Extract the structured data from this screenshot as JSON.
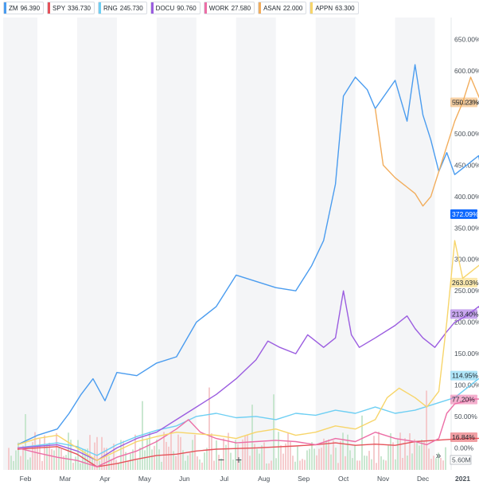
{
  "legend": [
    {
      "symbol": "ZM",
      "price": "96.390",
      "color": "#4a9cef"
    },
    {
      "symbol": "SPY",
      "price": "336.730",
      "color": "#e5525a"
    },
    {
      "symbol": "RNG",
      "price": "245.730",
      "color": "#6ecff3"
    },
    {
      "symbol": "DOCU",
      "price": "90.760",
      "color": "#9b5de0"
    },
    {
      "symbol": "WORK",
      "price": "27.580",
      "color": "#ec6ea6"
    },
    {
      "symbol": "ASAN",
      "price": "22.000",
      "color": "#f2ad5c"
    },
    {
      "symbol": "APPN",
      "price": "63.300",
      "color": "#f7d56a"
    }
  ],
  "volume_label": "5.60M",
  "controls": {
    "zoom_out": "−",
    "zoom_in": "+",
    "expand": "»"
  },
  "chart_data": {
    "type": "line",
    "y_unit": "percent change",
    "ylim": [
      -35,
      685
    ],
    "y_ticks": [
      "650.00%",
      "600.00%",
      "550.00%",
      "500.00%",
      "450.00%",
      "400.00%",
      "350.00%",
      "300.00%",
      "250.00%",
      "200.00%",
      "150.00%",
      "100.00%",
      "50.00%",
      "0.00%"
    ],
    "x_ticks": [
      "Feb",
      "Mar",
      "Apr",
      "May",
      "Jun",
      "Jul",
      "Aug",
      "Sep",
      "Oct",
      "Nov",
      "Dec",
      "2021"
    ],
    "grid": "alternating shaded month bands",
    "series": [
      {
        "name": "ZM",
        "color": "#4a9cef",
        "end_label": "372.09%",
        "points": [
          [
            0,
            5
          ],
          [
            0.5,
            20
          ],
          [
            1,
            30
          ],
          [
            1.3,
            55
          ],
          [
            1.6,
            85
          ],
          [
            1.9,
            110
          ],
          [
            2.2,
            75
          ],
          [
            2.5,
            120
          ],
          [
            3,
            115
          ],
          [
            3.5,
            135
          ],
          [
            4,
            145
          ],
          [
            4.5,
            200
          ],
          [
            5,
            225
          ],
          [
            5.5,
            275
          ],
          [
            6,
            265
          ],
          [
            6.5,
            255
          ],
          [
            7,
            250
          ],
          [
            7.4,
            290
          ],
          [
            7.7,
            330
          ],
          [
            8,
            420
          ],
          [
            8.2,
            560
          ],
          [
            8.5,
            590
          ],
          [
            8.8,
            570
          ],
          [
            9,
            540
          ],
          [
            9.5,
            585
          ],
          [
            9.8,
            520
          ],
          [
            10,
            610
          ],
          [
            10.2,
            530
          ],
          [
            10.4,
            490
          ],
          [
            10.6,
            440
          ],
          [
            10.8,
            470
          ],
          [
            11,
            435
          ],
          [
            11.3,
            450
          ],
          [
            11.6,
            465
          ],
          [
            11.8,
            400
          ],
          [
            12,
            380
          ],
          [
            12.2,
            372
          ]
        ]
      },
      {
        "name": "SPY",
        "color": "#e5525a",
        "end_label": "16.84%",
        "points": [
          [
            0,
            -2
          ],
          [
            1,
            2
          ],
          [
            1.5,
            -10
          ],
          [
            2,
            -30
          ],
          [
            2.5,
            -25
          ],
          [
            3,
            -18
          ],
          [
            3.5,
            -12
          ],
          [
            4,
            -10
          ],
          [
            4.5,
            -5
          ],
          [
            5,
            -2
          ],
          [
            6,
            0
          ],
          [
            7,
            3
          ],
          [
            7.5,
            5
          ],
          [
            8,
            8
          ],
          [
            8.5,
            4
          ],
          [
            9,
            6
          ],
          [
            9.5,
            4
          ],
          [
            10,
            10
          ],
          [
            10.5,
            12
          ],
          [
            11,
            14
          ],
          [
            11.5,
            15
          ],
          [
            12,
            16
          ],
          [
            12.2,
            17
          ]
        ]
      },
      {
        "name": "RNG",
        "color": "#6ecff3",
        "end_label": "114.95%",
        "points": [
          [
            0,
            0
          ],
          [
            1,
            8
          ],
          [
            1.5,
            2
          ],
          [
            2,
            -12
          ],
          [
            2.5,
            5
          ],
          [
            3,
            18
          ],
          [
            3.5,
            28
          ],
          [
            4,
            35
          ],
          [
            4.5,
            50
          ],
          [
            5,
            55
          ],
          [
            5.5,
            48
          ],
          [
            6,
            50
          ],
          [
            6.5,
            45
          ],
          [
            7,
            55
          ],
          [
            7.5,
            52
          ],
          [
            8,
            60
          ],
          [
            8.5,
            55
          ],
          [
            9,
            65
          ],
          [
            9.5,
            55
          ],
          [
            10,
            60
          ],
          [
            10.5,
            70
          ],
          [
            11,
            80
          ],
          [
            11.5,
            105
          ],
          [
            11.8,
            120
          ],
          [
            12,
            115
          ],
          [
            12.2,
            115
          ]
        ]
      },
      {
        "name": "DOCU",
        "color": "#9b5de0",
        "end_label": "213.40%",
        "points": [
          [
            0,
            0
          ],
          [
            1,
            5
          ],
          [
            1.5,
            -5
          ],
          [
            2,
            -20
          ],
          [
            2.5,
            0
          ],
          [
            3,
            15
          ],
          [
            3.5,
            25
          ],
          [
            4,
            45
          ],
          [
            4.5,
            65
          ],
          [
            5,
            85
          ],
          [
            5.5,
            110
          ],
          [
            6,
            140
          ],
          [
            6.3,
            170
          ],
          [
            6.6,
            160
          ],
          [
            7,
            150
          ],
          [
            7.3,
            180
          ],
          [
            7.7,
            160
          ],
          [
            8,
            175
          ],
          [
            8.2,
            250
          ],
          [
            8.4,
            180
          ],
          [
            8.6,
            160
          ],
          [
            9,
            175
          ],
          [
            9.5,
            195
          ],
          [
            9.8,
            210
          ],
          [
            10,
            190
          ],
          [
            10.2,
            175
          ],
          [
            10.5,
            160
          ],
          [
            10.8,
            185
          ],
          [
            11,
            200
          ],
          [
            11.3,
            210
          ],
          [
            11.6,
            225
          ],
          [
            11.8,
            200
          ],
          [
            12,
            195
          ],
          [
            12.2,
            213
          ]
        ]
      },
      {
        "name": "WORK",
        "color": "#ec6ea6",
        "end_label": "77.20%",
        "points": [
          [
            0,
            0
          ],
          [
            0.5,
            -8
          ],
          [
            1,
            -15
          ],
          [
            1.5,
            -20
          ],
          [
            2,
            -30
          ],
          [
            2.5,
            -15
          ],
          [
            3,
            -5
          ],
          [
            3.5,
            10
          ],
          [
            4,
            30
          ],
          [
            4.3,
            45
          ],
          [
            4.6,
            25
          ],
          [
            5,
            15
          ],
          [
            5.5,
            8
          ],
          [
            6,
            10
          ],
          [
            6.5,
            12
          ],
          [
            7,
            10
          ],
          [
            7.5,
            5
          ],
          [
            8,
            15
          ],
          [
            8.5,
            10
          ],
          [
            9,
            25
          ],
          [
            9.5,
            15
          ],
          [
            10,
            10
          ],
          [
            10.3,
            5
          ],
          [
            10.6,
            15
          ],
          [
            10.8,
            55
          ],
          [
            11,
            70
          ],
          [
            11.5,
            78
          ],
          [
            12,
            77
          ],
          [
            12.2,
            77
          ]
        ]
      },
      {
        "name": "ASAN",
        "color": "#f2ad5c",
        "end_label": "550.23%",
        "points": [
          [
            9,
            540
          ],
          [
            9.2,
            450
          ],
          [
            9.5,
            430
          ],
          [
            9.8,
            415
          ],
          [
            10,
            405
          ],
          [
            10.2,
            385
          ],
          [
            10.4,
            400
          ],
          [
            10.6,
            440
          ],
          [
            10.8,
            480
          ],
          [
            11,
            520
          ],
          [
            11.2,
            550
          ],
          [
            11.4,
            590
          ],
          [
            11.6,
            560
          ],
          [
            11.8,
            530
          ],
          [
            12,
            545
          ],
          [
            12.2,
            550
          ]
        ]
      },
      {
        "name": "APPN",
        "color": "#f7d56a",
        "end_label": "263.03%",
        "points": [
          [
            0,
            5
          ],
          [
            0.5,
            15
          ],
          [
            1,
            20
          ],
          [
            1.5,
            0
          ],
          [
            2,
            -20
          ],
          [
            2.5,
            -5
          ],
          [
            3,
            10
          ],
          [
            3.5,
            18
          ],
          [
            4,
            25
          ],
          [
            5,
            20
          ],
          [
            5.5,
            15
          ],
          [
            6,
            25
          ],
          [
            6.5,
            30
          ],
          [
            7,
            20
          ],
          [
            7.5,
            25
          ],
          [
            8,
            35
          ],
          [
            8.5,
            30
          ],
          [
            9,
            45
          ],
          [
            9.3,
            80
          ],
          [
            9.6,
            95
          ],
          [
            10,
            80
          ],
          [
            10.3,
            65
          ],
          [
            10.6,
            90
          ],
          [
            10.8,
            200
          ],
          [
            11,
            330
          ],
          [
            11.2,
            270
          ],
          [
            11.5,
            285
          ],
          [
            11.8,
            300
          ],
          [
            12,
            260
          ],
          [
            12.2,
            263
          ]
        ]
      }
    ]
  }
}
